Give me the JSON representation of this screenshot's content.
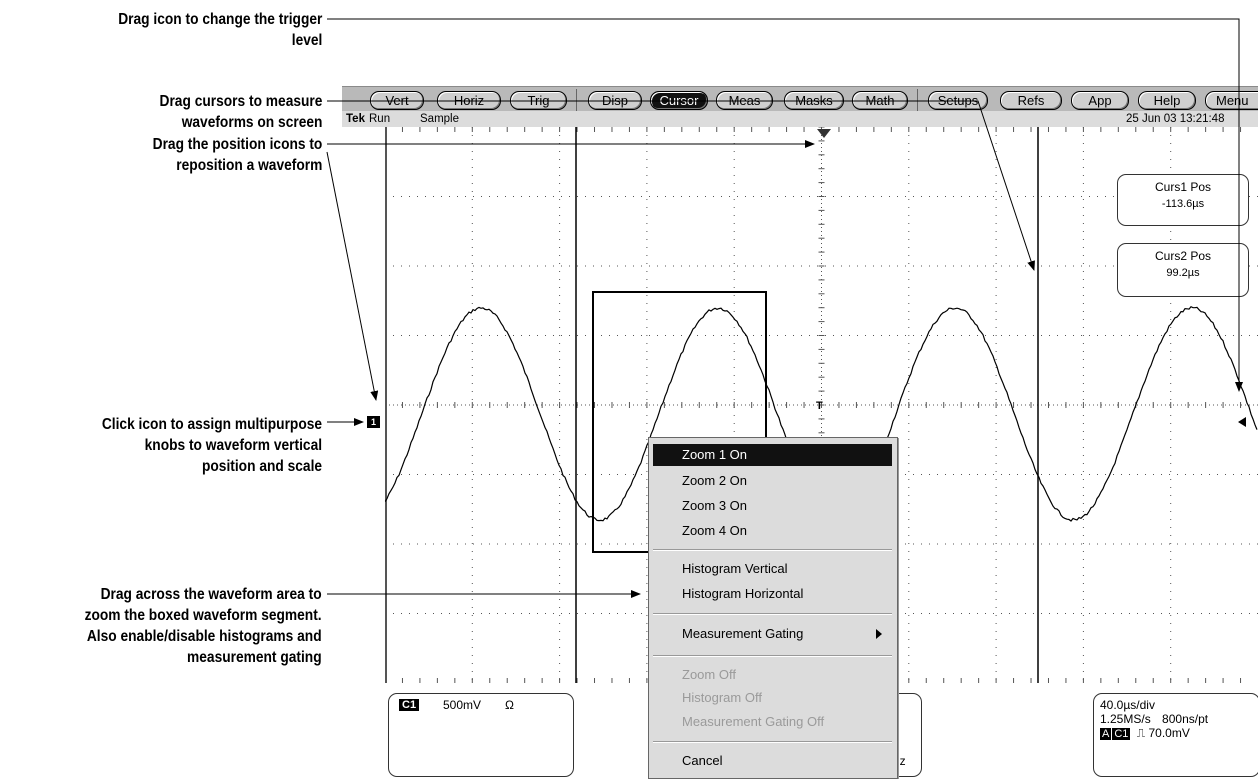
{
  "callouts": {
    "trigger_line1": "Drag icon to change the trigger",
    "trigger_line2": "level",
    "cursors_line1": "Drag cursors to measure",
    "cursors_line2": "waveforms on screen",
    "position_line1": "Drag the position icons to",
    "position_line2": "reposition a waveform",
    "assign_line1": "Click icon to assign multipurpose",
    "assign_line2": "knobs to waveform vertical",
    "assign_line3": "position and scale",
    "zoom_line1": "Drag across the waveform area to",
    "zoom_line2": "zoom the boxed waveform segment.",
    "zoom_line3": "Also enable/disable histograms and",
    "zoom_line4": "measurement gating"
  },
  "menubar": {
    "vert": "Vert",
    "horiz": "Horiz",
    "trig": "Trig",
    "disp": "Disp",
    "cursor": "Cursor",
    "meas": "Meas",
    "masks": "Masks",
    "math": "Math",
    "setups": "Setups",
    "refs": "Refs",
    "app": "App",
    "help": "Help",
    "menu": "Menu"
  },
  "status": {
    "brand": "Tek",
    "run": "Run",
    "mode": "Sample",
    "datetime": "25 Jun 03 13:21:48"
  },
  "cursors": {
    "curs1_label": "Curs1 Pos",
    "curs1_value": "-113.6µs",
    "curs2_label": "Curs2 Pos",
    "curs2_value": "99.2µs"
  },
  "channel": {
    "marker": "1",
    "badge": "C1",
    "scale": "500mV",
    "coupling": "Ω"
  },
  "horizontal": {
    "scale": "40.0µs/div",
    "rate": "1.25MS/s",
    "resolution": "800ns/pt",
    "trig_a": "A",
    "trig_source": "C1",
    "trig_slope": "⎍",
    "trig_level": "70.0mV"
  },
  "partial_readout": "lz",
  "trigger_t": "T",
  "context_menu": {
    "zoom1": "Zoom 1 On",
    "zoom2": "Zoom 2 On",
    "zoom3": "Zoom 3 On",
    "zoom4": "Zoom 4 On",
    "hist_v": "Histogram Vertical",
    "hist_h": "Histogram Horizontal",
    "gating": "Measurement Gating",
    "zoom_off": "Zoom Off",
    "hist_off": "Histogram Off",
    "gating_off": "Measurement Gating Off",
    "cancel": "Cancel"
  },
  "colors": {
    "toolbar": "#b9b9b9",
    "active_button": "#111111",
    "menu_bg": "#dcdcdc",
    "disabled_text": "#9a9a9a"
  }
}
